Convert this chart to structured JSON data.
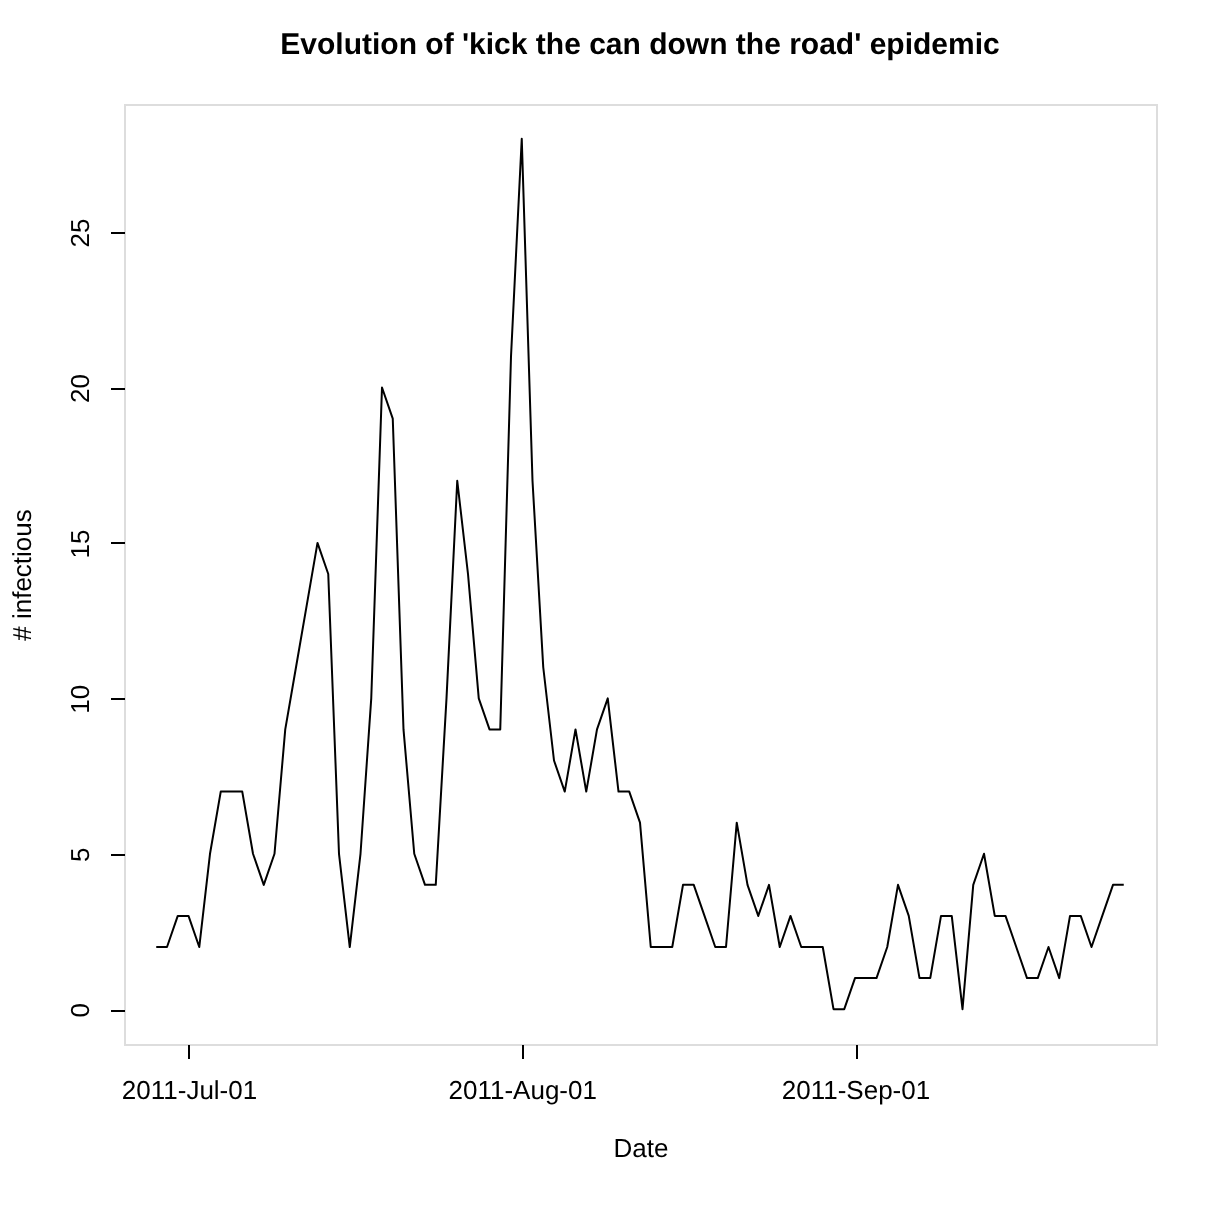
{
  "chart_data": {
    "type": "line",
    "title": "Evolution of 'kick the can down the road' epidemic",
    "xlabel": "Date",
    "ylabel": "# infectious",
    "x": [
      "2011-06-28",
      "2011-06-29",
      "2011-06-30",
      "2011-07-01",
      "2011-07-02",
      "2011-07-03",
      "2011-07-04",
      "2011-07-05",
      "2011-07-06",
      "2011-07-07",
      "2011-07-08",
      "2011-07-09",
      "2011-07-10",
      "2011-07-11",
      "2011-07-12",
      "2011-07-13",
      "2011-07-14",
      "2011-07-15",
      "2011-07-16",
      "2011-07-17",
      "2011-07-18",
      "2011-07-19",
      "2011-07-20",
      "2011-07-21",
      "2011-07-22",
      "2011-07-23",
      "2011-07-24",
      "2011-07-25",
      "2011-07-26",
      "2011-07-27",
      "2011-07-28",
      "2011-07-29",
      "2011-07-30",
      "2011-07-31",
      "2011-08-01",
      "2011-08-02",
      "2011-08-03",
      "2011-08-04",
      "2011-08-05",
      "2011-08-06",
      "2011-08-07",
      "2011-08-08",
      "2011-08-09",
      "2011-08-10",
      "2011-08-11",
      "2011-08-12",
      "2011-08-13",
      "2011-08-14",
      "2011-08-15",
      "2011-08-16",
      "2011-08-17",
      "2011-08-18",
      "2011-08-19",
      "2011-08-20",
      "2011-08-21",
      "2011-08-22",
      "2011-08-23",
      "2011-08-24",
      "2011-08-25",
      "2011-08-26",
      "2011-08-27",
      "2011-08-28",
      "2011-08-29",
      "2011-08-30",
      "2011-08-31",
      "2011-09-01",
      "2011-09-02",
      "2011-09-03",
      "2011-09-04",
      "2011-09-05",
      "2011-09-06",
      "2011-09-07",
      "2011-09-08",
      "2011-09-09",
      "2011-09-10",
      "2011-09-11",
      "2011-09-12",
      "2011-09-13",
      "2011-09-14",
      "2011-09-15",
      "2011-09-16",
      "2011-09-17",
      "2011-09-18",
      "2011-09-19",
      "2011-09-20",
      "2011-09-21",
      "2011-09-22",
      "2011-09-23",
      "2011-09-24",
      "2011-09-25",
      "2011-09-26"
    ],
    "series": [
      {
        "color": "#000000",
        "values": [
          2,
          2,
          3,
          3,
          2,
          5,
          7,
          7,
          7,
          5,
          4,
          5,
          9,
          11,
          13,
          15,
          14,
          5,
          2,
          5,
          10,
          20,
          19,
          9,
          5,
          4,
          4,
          10,
          17,
          14,
          10,
          9,
          9,
          21,
          28,
          17,
          11,
          8,
          7,
          9,
          7,
          9,
          10,
          7,
          7,
          6,
          2,
          2,
          2,
          4,
          4,
          3,
          2,
          2,
          6,
          4,
          3,
          4,
          2,
          3,
          2,
          2,
          2,
          0,
          0,
          1,
          1,
          1,
          2,
          4,
          3,
          1,
          1,
          3,
          3,
          0,
          4,
          5,
          3,
          3,
          2,
          1,
          1,
          2,
          1,
          3,
          3,
          2,
          3,
          4,
          4
        ]
      }
    ],
    "xlim": [
      "2011-06-25",
      "2011-09-29"
    ],
    "xticks": [
      {
        "value": "2011-07-01",
        "label": "2011-Jul-01"
      },
      {
        "value": "2011-08-01",
        "label": "2011-Aug-01"
      },
      {
        "value": "2011-09-01",
        "label": "2011-Sep-01"
      }
    ],
    "ylim": [
      -1.12,
      29.12
    ],
    "yticks": [
      0,
      5,
      10,
      15,
      20,
      25
    ],
    "grid": false,
    "legend": false,
    "marker": "none",
    "line_style": "solid"
  }
}
